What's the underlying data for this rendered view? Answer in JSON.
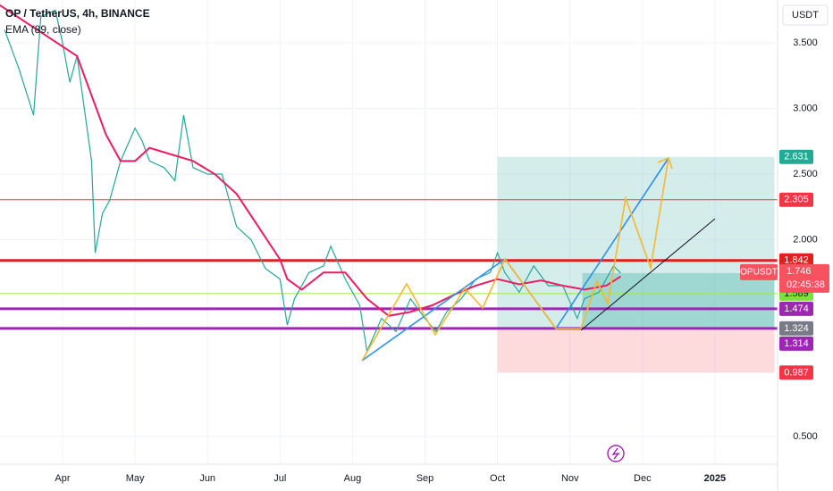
{
  "header": {
    "title": "OP / TetherUS, 4h, BINANCE",
    "indicator": "EMA (89, close)",
    "currency": "USDT"
  },
  "chart_data": {
    "type": "line",
    "xlim": [
      -0.863,
      9.864
    ],
    "xticks": [
      {
        "value": 0,
        "label": "Apr"
      },
      {
        "value": 1,
        "label": "May"
      },
      {
        "value": 2,
        "label": "Jun"
      },
      {
        "value": 3,
        "label": "Jul"
      },
      {
        "value": 4,
        "label": "Aug"
      },
      {
        "value": 5,
        "label": "Sep"
      },
      {
        "value": 6,
        "label": "Oct"
      },
      {
        "value": 7,
        "label": "Nov"
      },
      {
        "value": 8,
        "label": "Dec"
      },
      {
        "value": 9,
        "label": "2025"
      }
    ],
    "ylim": [
      0.289,
      3.827
    ],
    "yticks": [
      {
        "value": 0.5,
        "label": "0.500"
      },
      {
        "value": 2.0,
        "label": "2.000"
      },
      {
        "value": 2.5,
        "label": "2.500"
      },
      {
        "value": 3.0,
        "label": "3.000"
      },
      {
        "value": 3.5,
        "label": "3.500"
      }
    ],
    "grid": true,
    "series": [
      {
        "name": "OPUSDT",
        "color": "#26a69a",
        "x": [
          -0.8,
          -0.6,
          -0.4,
          -0.3,
          -0.1,
          0.0,
          0.1,
          0.2,
          0.3,
          0.4,
          0.45,
          0.55,
          0.65,
          0.8,
          1.0,
          1.1,
          1.2,
          1.4,
          1.55,
          1.67,
          1.8,
          2.0,
          2.2,
          2.25,
          2.4,
          2.6,
          2.8,
          3.0,
          3.1,
          3.2,
          3.4,
          3.6,
          3.7,
          3.9,
          4.1,
          4.2,
          4.4,
          4.6,
          4.8,
          5.0,
          5.15,
          5.3,
          5.5,
          5.7,
          5.9,
          6.0,
          6.1,
          6.3,
          6.5,
          6.7,
          6.9,
          7.1,
          7.2,
          7.4,
          7.6,
          7.7
        ],
        "values": [
          3.6,
          3.3,
          2.95,
          3.7,
          3.75,
          3.5,
          3.2,
          3.4,
          3.0,
          2.6,
          1.9,
          2.2,
          2.3,
          2.6,
          2.85,
          2.75,
          2.6,
          2.55,
          2.45,
          2.95,
          2.55,
          2.5,
          2.5,
          2.4,
          2.1,
          2.0,
          1.78,
          1.7,
          1.35,
          1.55,
          1.75,
          1.8,
          1.95,
          1.7,
          1.5,
          1.15,
          1.4,
          1.3,
          1.55,
          1.4,
          1.3,
          1.45,
          1.55,
          1.7,
          1.75,
          1.9,
          1.75,
          1.6,
          1.8,
          1.65,
          1.65,
          1.4,
          1.55,
          1.6,
          1.8,
          1.746
        ]
      },
      {
        "name": "EMA (89, close)",
        "color": "#e91e63",
        "x": [
          -0.9,
          0.2,
          0.4,
          0.6,
          0.8,
          1.0,
          1.2,
          1.5,
          1.8,
          2.1,
          2.4,
          2.7,
          3.0,
          3.1,
          3.3,
          3.6,
          3.9,
          4.2,
          4.5,
          4.8,
          5.1,
          5.4,
          5.7,
          6.0,
          6.3,
          6.6,
          6.9,
          7.2,
          7.5,
          7.7
        ],
        "values": [
          3.8,
          3.4,
          3.1,
          2.8,
          2.6,
          2.6,
          2.7,
          2.65,
          2.6,
          2.5,
          2.35,
          2.1,
          1.85,
          1.7,
          1.62,
          1.75,
          1.75,
          1.55,
          1.42,
          1.45,
          1.5,
          1.58,
          1.65,
          1.7,
          1.66,
          1.69,
          1.65,
          1.62,
          1.65,
          1.72
        ]
      }
    ],
    "levels": [
      {
        "value": 2.305,
        "color": "#f23645",
        "width": 1
      },
      {
        "value": 1.842,
        "color": "#e0201f",
        "width": 3
      },
      {
        "value": 1.589,
        "color": "#a5e83b",
        "width": 1
      },
      {
        "value": 1.474,
        "color": "#9c27b0",
        "width": 3
      },
      {
        "value": 1.324,
        "color": "#9c27b0",
        "width": 3
      }
    ],
    "position": {
      "target": 2.631,
      "entry": 1.324,
      "stop": 0.987,
      "current": 1.746,
      "x": [
        6.0,
        9.82
      ],
      "current_x": 7.17
    },
    "price_labels": [
      {
        "value": 2.631,
        "color": "#22ab94"
      },
      {
        "value": 2.305,
        "color": "#f23645"
      },
      {
        "value": 1.842,
        "color": "#e0201f"
      },
      {
        "value": 1.589,
        "color": "#7ee03a"
      },
      {
        "value": 1.474,
        "color": "#9c27b0"
      },
      {
        "value": 1.324,
        "color": "#787b86"
      },
      {
        "value": 1.314,
        "color": "#9c27b0"
      },
      {
        "value": 0.987,
        "color": "#f23645"
      }
    ],
    "last_price": {
      "value": 1.746,
      "countdown": "02:45:38",
      "color": "#f7525f"
    }
  }
}
